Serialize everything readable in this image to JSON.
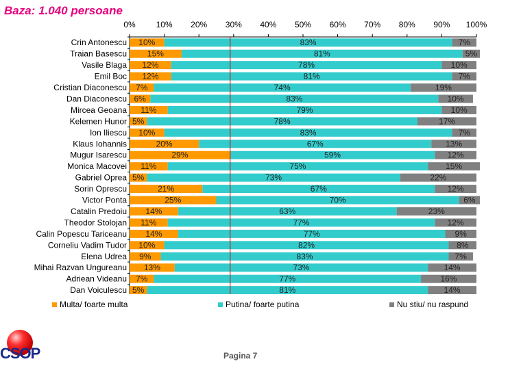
{
  "header": {
    "base_label": "Baza: 1.040 persoane"
  },
  "colors": {
    "multa": "#ff9900",
    "putina": "#33cccc",
    "nu_stiu": "#808080",
    "ref_line": "#cc0000"
  },
  "chart_data": {
    "type": "bar",
    "orientation": "horizontal",
    "stacked": true,
    "xlim": [
      0,
      100
    ],
    "x_ticks": [
      "0%",
      "10%",
      "20%",
      "30%",
      "40%",
      "50%",
      "60%",
      "70%",
      "80%",
      "90%",
      "100%"
    ],
    "reference_line_x": 29,
    "legend_position": "bottom",
    "categories": [
      "Crin Antonescu",
      "Traian Basescu",
      "Vasile Blaga",
      "Emil Boc",
      "Cristian Diaconescu",
      "Dan Diaconescu",
      "Mircea Geoana",
      "Kelemen Hunor",
      "Ion Iliescu",
      "Klaus Iohannis",
      "Mugur Isarescu",
      "Monica Macovei",
      "Gabriel Oprea",
      "Sorin Oprescu",
      "Victor Ponta",
      "Catalin Predoiu",
      "Theodor Stolojan",
      "Calin Popescu Tariceanu",
      "Corneliu Vadim Tudor",
      "Elena Udrea",
      "Mihai Razvan Ungureanu",
      "Adriean Videanu",
      "Dan Voiculescu"
    ],
    "series": [
      {
        "name": "Multa/ foarte multa",
        "values": [
          10,
          15,
          12,
          12,
          7,
          6,
          11,
          5,
          10,
          20,
          29,
          11,
          5,
          21,
          25,
          14,
          11,
          14,
          10,
          9,
          13,
          7,
          5
        ]
      },
      {
        "name": "Putina/ foarte putina",
        "values": [
          83,
          81,
          78,
          81,
          74,
          83,
          79,
          78,
          83,
          67,
          59,
          75,
          73,
          67,
          70,
          63,
          77,
          77,
          82,
          83,
          73,
          77,
          81
        ]
      },
      {
        "name": "Nu stiu/ nu raspund",
        "values": [
          7,
          5,
          10,
          7,
          19,
          10,
          10,
          17,
          7,
          13,
          12,
          15,
          22,
          12,
          6,
          23,
          12,
          9,
          8,
          7,
          14,
          16,
          14
        ]
      }
    ]
  },
  "logo": {
    "text": "CSOP"
  },
  "footer": {
    "page_label": "Pagina 7"
  }
}
